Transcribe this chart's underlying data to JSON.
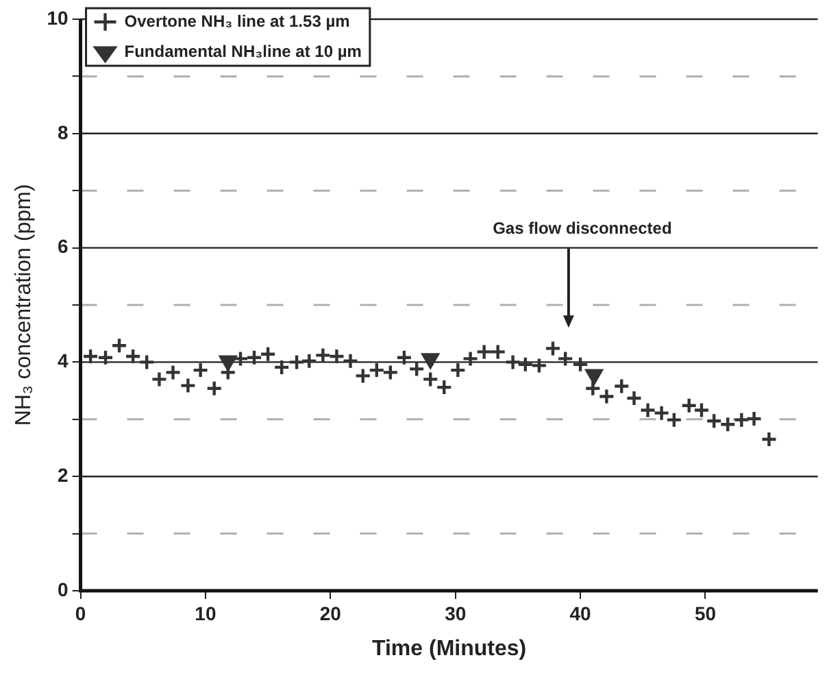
{
  "chart_data": {
    "type": "scatter",
    "xlabel": "Time (Minutes)",
    "ylabel": "NH₃ concentration (ppm)",
    "xlim": [
      0,
      59
    ],
    "xticks": [
      0,
      10,
      20,
      30,
      40,
      50
    ],
    "ylim": [
      0,
      10
    ],
    "yticks": [
      0,
      {
        "value": 1,
        "label": null
      },
      2,
      {
        "value": 3,
        "label": null
      },
      4,
      {
        "value": 5,
        "label": null
      },
      6,
      {
        "value": 7,
        "label": null
      },
      8,
      {
        "value": 9,
        "label": null
      },
      10
    ],
    "grid": "y",
    "legend": "top left",
    "annotations": [
      "Gas flow disconnected"
    ],
    "series": [
      {
        "name": "Overtone NH₃ line at 1.53 µm",
        "color": "#333333",
        "marker": "cross",
        "x": [
          0.8,
          2.0,
          3.1,
          4.2,
          5.3,
          6.3,
          7.4,
          8.6,
          9.6,
          10.7,
          11.8,
          12.8,
          13.9,
          15.0,
          16.1,
          17.3,
          18.3,
          19.4,
          20.5,
          21.6,
          22.6,
          23.7,
          24.8,
          25.9,
          26.9,
          28.0,
          29.1,
          30.2,
          31.2,
          32.3,
          33.4,
          34.6,
          35.6,
          36.7,
          37.8,
          38.8,
          40.0,
          41.0,
          42.1,
          43.3,
          44.3,
          45.4,
          46.5,
          47.5,
          48.7,
          49.7,
          50.7,
          51.8,
          52.9,
          53.9,
          55.1
        ],
        "values": [
          4.1,
          4.08,
          4.29,
          4.1,
          4.0,
          3.7,
          3.82,
          3.59,
          3.86,
          3.54,
          3.82,
          4.06,
          4.08,
          4.14,
          3.91,
          4.0,
          4.02,
          4.12,
          4.1,
          4.02,
          3.76,
          3.86,
          3.82,
          4.08,
          3.88,
          3.7,
          3.56,
          3.86,
          4.06,
          4.18,
          4.18,
          4.0,
          3.96,
          3.94,
          4.24,
          4.06,
          3.96,
          3.54,
          3.4,
          3.58,
          3.37,
          3.16,
          3.11,
          2.99,
          3.24,
          3.16,
          2.97,
          2.91,
          2.99,
          3.01,
          2.65
        ]
      },
      {
        "name": "Fundamental NH₃line at 10 µm",
        "color": "#333333",
        "marker": "triangle",
        "x": [
          11.8,
          28.0,
          41.1
        ],
        "values": [
          4.02,
          4.06,
          3.78
        ]
      }
    ]
  }
}
